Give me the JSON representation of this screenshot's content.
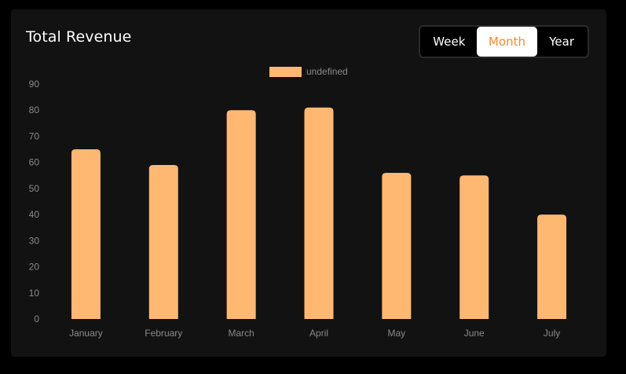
{
  "header": {
    "title": "Total Revenue"
  },
  "range_toggle": {
    "options": [
      "Week",
      "Month",
      "Year"
    ],
    "selected": "Month"
  },
  "colors": {
    "bar": "#ffb872",
    "accent": "#f08a33",
    "card_background": "#121212",
    "page_background": "#000000"
  },
  "chart_data": {
    "type": "bar",
    "title": "",
    "xlabel": "",
    "ylabel": "",
    "categories": [
      "January",
      "February",
      "March",
      "April",
      "May",
      "June",
      "July"
    ],
    "series": [
      {
        "name": "undefined",
        "values": [
          65,
          59,
          80,
          81,
          56,
          55,
          40
        ]
      }
    ],
    "ylim": [
      0,
      90
    ],
    "yticks": [
      0,
      10,
      20,
      30,
      40,
      50,
      60,
      70,
      80,
      90
    ],
    "grid": false,
    "legend": "top-center"
  }
}
